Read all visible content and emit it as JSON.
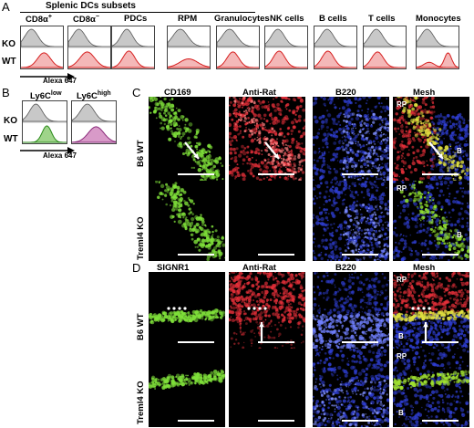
{
  "panels": {
    "A": {
      "letter": "A",
      "group_header": "Splenic DCs subsets",
      "columns": [
        "CD8α+",
        "CD8α−",
        "PDCs",
        "RPM",
        "Granulocytes",
        "NK cells",
        "B cells",
        "T cells",
        "Monocytes"
      ],
      "row_labels": [
        "KO",
        "WT"
      ],
      "axis_label": "Alexa 647"
    },
    "B": {
      "letter": "B",
      "columns": [
        "Ly6Clow",
        "Ly6Chigh"
      ],
      "row_labels": [
        "KO",
        "WT"
      ],
      "axis_label": "Alexa 647"
    },
    "C": {
      "letter": "C",
      "columns": [
        "CD169",
        "Anti-Rat",
        "B220",
        "Mesh"
      ],
      "rows": [
        "B6 WT",
        "Treml4 KO"
      ],
      "tags": [
        "RP",
        "B",
        "RP",
        "B"
      ]
    },
    "D": {
      "letter": "D",
      "columns": [
        "SIGNR1",
        "Anti-Rat",
        "B220",
        "Mesh"
      ],
      "rows": [
        "B6 WT",
        "Treml4 KO"
      ],
      "tags": [
        "RP",
        "B",
        "RP",
        "B"
      ]
    }
  },
  "colors": {
    "ko_fill": "#c8c8c8",
    "wt_fill": "#f4b8b8",
    "wt_line": "#d62020",
    "ly6c_low_fill": "#9fd48a",
    "ly6c_high_fill": "#d89ac8",
    "green_stain": "#7fe03a",
    "red_stain": "#e8303a",
    "blue_stain": "#3040d8"
  }
}
